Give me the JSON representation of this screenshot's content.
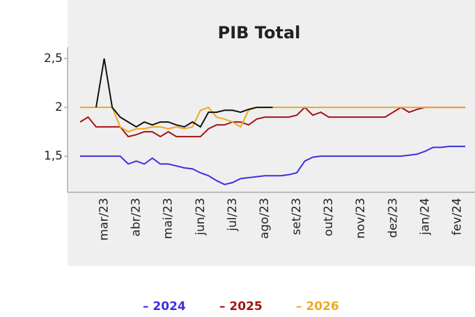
{
  "chart_data": {
    "type": "line",
    "title": "PIB Total",
    "x": [
      null,
      null,
      null,
      "mar/23",
      null,
      null,
      null,
      "abr/23",
      null,
      null,
      null,
      "mai/23",
      null,
      null,
      null,
      "jun/23",
      null,
      null,
      null,
      "jul/23",
      null,
      null,
      null,
      "ago/23",
      null,
      null,
      null,
      "set/23",
      null,
      null,
      null,
      "out/23",
      null,
      null,
      null,
      "nov/23",
      null,
      null,
      null,
      "dez/23",
      null,
      null,
      null,
      "jan/24",
      null,
      null,
      null,
      "fev/24",
      null
    ],
    "series": [
      {
        "name": "2024",
        "color": "#3b2fe0",
        "values": [
          1.5,
          1.5,
          1.5,
          1.5,
          1.5,
          1.5,
          1.42,
          1.45,
          1.42,
          1.48,
          1.42,
          1.42,
          1.4,
          1.38,
          1.37,
          1.33,
          1.3,
          1.25,
          1.21,
          1.23,
          1.27,
          1.28,
          1.29,
          1.3,
          1.3,
          1.3,
          1.31,
          1.33,
          1.45,
          1.49,
          1.5,
          1.5,
          1.5,
          1.5,
          1.5,
          1.5,
          1.5,
          1.5,
          1.5,
          1.5,
          1.5,
          1.51,
          1.52,
          1.55,
          1.59,
          1.59,
          1.6,
          1.6,
          1.6
        ]
      },
      {
        "name": "2025",
        "color": "#a01414",
        "values": [
          1.85,
          1.9,
          1.8,
          1.8,
          1.8,
          1.8,
          1.7,
          1.72,
          1.75,
          1.75,
          1.7,
          1.75,
          1.7,
          1.7,
          1.7,
          1.7,
          1.78,
          1.82,
          1.82,
          1.85,
          1.85,
          1.82,
          1.88,
          1.9,
          1.9,
          1.9,
          1.9,
          1.92,
          2.0,
          1.92,
          1.95,
          1.9,
          1.9,
          1.9,
          1.9,
          1.9,
          1.9,
          1.9,
          1.9,
          1.95,
          2.0,
          1.95,
          1.98,
          2.0,
          2.0,
          2.0,
          2.0,
          2.0,
          2.0
        ]
      },
      {
        "name": "2026",
        "color": "#f0a820",
        "values": [
          2.0,
          2.0,
          2.0,
          2.0,
          2.0,
          1.8,
          1.75,
          1.78,
          1.78,
          1.8,
          1.8,
          1.78,
          1.8,
          1.78,
          1.8,
          1.97,
          2.0,
          1.9,
          1.88,
          1.85,
          1.8,
          1.97,
          2.0,
          2.0,
          2.0,
          2.0,
          2.0,
          2.0,
          2.0,
          2.0,
          2.0,
          2.0,
          2.0,
          2.0,
          2.0,
          2.0,
          2.0,
          2.0,
          2.0,
          2.0,
          2.0,
          2.0,
          2.0,
          2.0,
          2.0,
          2.0,
          2.0,
          2.0,
          2.0
        ]
      },
      {
        "color": "#111111",
        "values": [
          null,
          null,
          2.0,
          2.5,
          2.0,
          1.9,
          1.85,
          1.8,
          1.85,
          1.82,
          1.85,
          1.85,
          1.82,
          1.8,
          1.85,
          1.8,
          1.95,
          1.95,
          1.97,
          1.97,
          1.95,
          1.98,
          2.0,
          2.0,
          2.0,
          null,
          null,
          null,
          null,
          null,
          null,
          null,
          null,
          null,
          null,
          null,
          null,
          null,
          null,
          null,
          null,
          null,
          null,
          null,
          null,
          null,
          null,
          null,
          null
        ]
      }
    ],
    "ylim": [
      1.13,
      2.6
    ],
    "yticks": [
      {
        "value": 1.5,
        "label": "1,5"
      },
      2,
      {
        "value": 2.5,
        "label": "2,5"
      }
    ]
  }
}
